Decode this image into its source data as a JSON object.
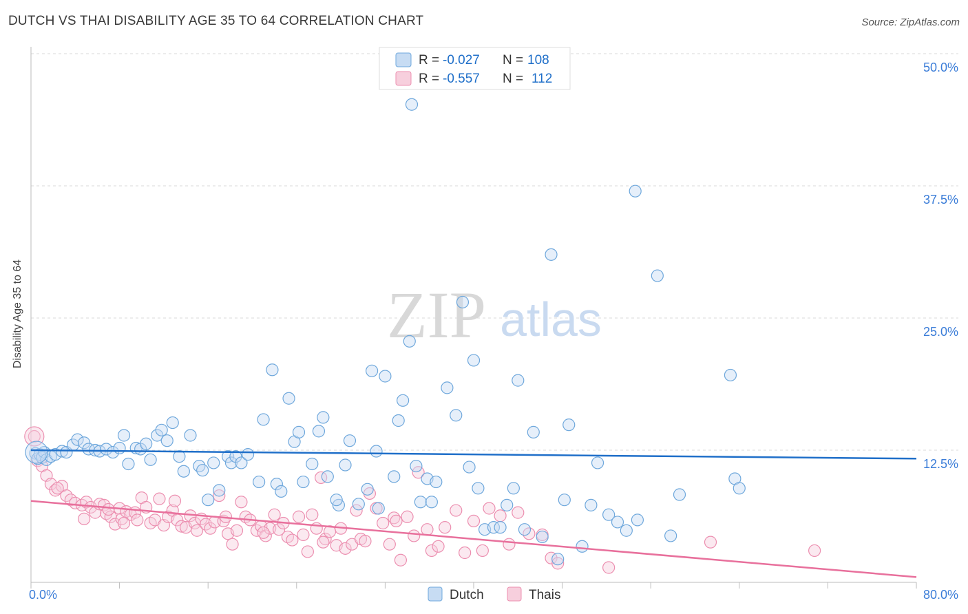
{
  "title": "DUTCH VS THAI DISABILITY AGE 35 TO 64 CORRELATION CHART",
  "source": "Source: ZipAtlas.com",
  "watermark": {
    "zip": "ZIP",
    "atlas": "atlas"
  },
  "colors": {
    "dutch": "#6fa8dc",
    "dutch_fill": "#c7dcf3",
    "dutch_line": "#1f6fc9",
    "thai": "#ec8fb0",
    "thai_fill": "#f7cfdd",
    "thai_line": "#e8709c",
    "tick_text": "#3b7dd8",
    "grid": "#d9d9d9"
  },
  "legend": {
    "rows": [
      {
        "r_label": "R =",
        "r_value": "-0.027",
        "n_label": "N =",
        "n_value": "108"
      },
      {
        "r_label": "R =",
        "r_value": "-0.557",
        "n_label": "N =",
        "n_value": "112"
      }
    ]
  },
  "chart_data": {
    "type": "scatter",
    "xlabel": "",
    "ylabel": "Disability Age 35 to 64",
    "xlim": [
      0,
      80
    ],
    "ylim": [
      0,
      50
    ],
    "x_tick_labels": [
      "0.0%",
      "80.0%"
    ],
    "y_ticks": [
      12.5,
      25.0,
      37.5,
      50.0
    ],
    "y_tick_labels": [
      "12.5%",
      "25.0%",
      "37.5%",
      "50.0%"
    ],
    "grid": "horizontal dashed",
    "legend_position": "top-center",
    "series": [
      {
        "name": "Dutch",
        "color": "#6fa8dc",
        "trend": {
          "x": [
            0,
            80
          ],
          "y": [
            12.5,
            11.7
          ]
        },
        "points": [
          [
            0.4,
            12.2
          ],
          [
            0.6,
            11.7
          ],
          [
            0.8,
            12.1
          ],
          [
            1.0,
            11.8
          ],
          [
            1.2,
            12.3
          ],
          [
            1.4,
            11.6
          ],
          [
            1.8,
            11.9
          ],
          [
            2.2,
            12.1
          ],
          [
            2.8,
            12.4
          ],
          [
            3.2,
            12.3
          ],
          [
            3.8,
            13.0
          ],
          [
            4.2,
            13.5
          ],
          [
            4.8,
            13.2
          ],
          [
            5.2,
            12.6
          ],
          [
            5.8,
            12.5
          ],
          [
            6.2,
            12.4
          ],
          [
            6.8,
            12.6
          ],
          [
            7.4,
            12.3
          ],
          [
            8.0,
            12.7
          ],
          [
            8.4,
            13.9
          ],
          [
            8.8,
            11.2
          ],
          [
            9.5,
            12.7
          ],
          [
            9.9,
            12.6
          ],
          [
            10.4,
            13.1
          ],
          [
            10.8,
            11.6
          ],
          [
            11.4,
            13.9
          ],
          [
            11.8,
            14.4
          ],
          [
            12.3,
            13.4
          ],
          [
            12.8,
            15.1
          ],
          [
            13.4,
            11.9
          ],
          [
            13.8,
            10.5
          ],
          [
            14.4,
            13.9
          ],
          [
            15.2,
            11.0
          ],
          [
            15.5,
            10.6
          ],
          [
            16.0,
            7.8
          ],
          [
            16.5,
            11.3
          ],
          [
            17.0,
            8.7
          ],
          [
            17.8,
            11.9
          ],
          [
            18.1,
            11.3
          ],
          [
            18.5,
            11.9
          ],
          [
            19.0,
            11.3
          ],
          [
            19.6,
            12.1
          ],
          [
            20.6,
            9.5
          ],
          [
            21.0,
            15.4
          ],
          [
            21.8,
            20.1
          ],
          [
            22.2,
            9.3
          ],
          [
            22.6,
            8.6
          ],
          [
            23.3,
            17.4
          ],
          [
            23.8,
            13.3
          ],
          [
            24.2,
            14.2
          ],
          [
            24.6,
            9.5
          ],
          [
            25.4,
            11.2
          ],
          [
            26.0,
            14.3
          ],
          [
            26.4,
            15.6
          ],
          [
            26.8,
            10.0
          ],
          [
            27.8,
            7.3
          ],
          [
            27.6,
            7.8
          ],
          [
            28.4,
            11.1
          ],
          [
            28.8,
            13.4
          ],
          [
            29.6,
            7.4
          ],
          [
            30.4,
            8.8
          ],
          [
            30.8,
            20.0
          ],
          [
            31.2,
            12.4
          ],
          [
            31.4,
            7.0
          ],
          [
            32.0,
            19.5
          ],
          [
            32.8,
            10.0
          ],
          [
            33.2,
            15.3
          ],
          [
            33.6,
            17.2
          ],
          [
            34.2,
            22.8
          ],
          [
            34.4,
            45.2
          ],
          [
            34.8,
            11.0
          ],
          [
            35.2,
            7.6
          ],
          [
            35.8,
            9.8
          ],
          [
            36.2,
            7.6
          ],
          [
            36.6,
            9.5
          ],
          [
            37.6,
            18.4
          ],
          [
            38.4,
            15.8
          ],
          [
            39.0,
            26.5
          ],
          [
            39.6,
            10.9
          ],
          [
            40.0,
            21.0
          ],
          [
            40.4,
            8.9
          ],
          [
            41.0,
            5.0
          ],
          [
            41.8,
            5.2
          ],
          [
            42.4,
            5.2
          ],
          [
            43.0,
            7.3
          ],
          [
            43.6,
            8.9
          ],
          [
            44.0,
            19.1
          ],
          [
            44.6,
            5.0
          ],
          [
            45.4,
            14.2
          ],
          [
            46.2,
            4.3
          ],
          [
            47.0,
            31.0
          ],
          [
            47.6,
            2.2
          ],
          [
            48.2,
            7.8
          ],
          [
            48.6,
            14.9
          ],
          [
            49.8,
            3.4
          ],
          [
            50.6,
            7.3
          ],
          [
            51.2,
            11.3
          ],
          [
            52.2,
            6.4
          ],
          [
            53.0,
            5.7
          ],
          [
            53.8,
            4.9
          ],
          [
            54.6,
            37.0
          ],
          [
            54.8,
            5.9
          ],
          [
            56.6,
            29.0
          ],
          [
            57.8,
            4.4
          ],
          [
            58.6,
            8.3
          ],
          [
            63.2,
            19.6
          ],
          [
            63.6,
            9.8
          ],
          [
            64.0,
            8.9
          ]
        ]
      },
      {
        "name": "Thais",
        "color": "#ec8fb0",
        "trend": {
          "x": [
            0,
            80
          ],
          "y": [
            7.7,
            0.5
          ]
        },
        "points": [
          [
            0.3,
            13.8
          ],
          [
            0.6,
            11.5
          ],
          [
            1.0,
            11.0
          ],
          [
            1.4,
            10.1
          ],
          [
            1.8,
            9.3
          ],
          [
            2.2,
            8.7
          ],
          [
            2.8,
            9.1
          ],
          [
            3.2,
            8.2
          ],
          [
            3.6,
            7.8
          ],
          [
            4.0,
            7.5
          ],
          [
            4.6,
            7.3
          ],
          [
            5.0,
            7.6
          ],
          [
            5.4,
            7.1
          ],
          [
            5.8,
            6.6
          ],
          [
            6.2,
            7.4
          ],
          [
            6.6,
            7.3
          ],
          [
            6.8,
            6.5
          ],
          [
            7.2,
            6.2
          ],
          [
            7.6,
            5.5
          ],
          [
            8.0,
            7.0
          ],
          [
            8.2,
            6.0
          ],
          [
            8.6,
            6.7
          ],
          [
            9.0,
            6.4
          ],
          [
            9.4,
            6.6
          ],
          [
            9.6,
            5.9
          ],
          [
            10.0,
            8.0
          ],
          [
            10.4,
            7.1
          ],
          [
            10.8,
            5.6
          ],
          [
            11.2,
            5.9
          ],
          [
            11.6,
            7.9
          ],
          [
            12.0,
            5.4
          ],
          [
            12.4,
            6.2
          ],
          [
            12.8,
            6.8
          ],
          [
            13.2,
            5.9
          ],
          [
            13.6,
            5.3
          ],
          [
            14.0,
            5.2
          ],
          [
            14.4,
            6.3
          ],
          [
            14.8,
            5.6
          ],
          [
            15.0,
            4.9
          ],
          [
            15.4,
            6.0
          ],
          [
            15.8,
            5.5
          ],
          [
            16.2,
            5.1
          ],
          [
            16.6,
            5.7
          ],
          [
            17.0,
            8.2
          ],
          [
            17.4,
            5.8
          ],
          [
            17.8,
            4.6
          ],
          [
            18.2,
            3.6
          ],
          [
            18.6,
            4.9
          ],
          [
            19.0,
            7.6
          ],
          [
            19.4,
            6.2
          ],
          [
            19.8,
            5.9
          ],
          [
            20.4,
            4.9
          ],
          [
            20.8,
            5.3
          ],
          [
            21.2,
            4.4
          ],
          [
            21.6,
            5.1
          ],
          [
            22.0,
            6.4
          ],
          [
            22.4,
            5.0
          ],
          [
            22.8,
            5.6
          ],
          [
            23.2,
            4.3
          ],
          [
            23.6,
            4.0
          ],
          [
            24.2,
            6.2
          ],
          [
            24.6,
            4.5
          ],
          [
            25.0,
            2.9
          ],
          [
            25.4,
            6.4
          ],
          [
            25.8,
            5.1
          ],
          [
            26.2,
            9.9
          ],
          [
            26.6,
            4.1
          ],
          [
            27.0,
            4.8
          ],
          [
            27.6,
            3.5
          ],
          [
            28.0,
            5.1
          ],
          [
            28.4,
            3.2
          ],
          [
            29.0,
            3.6
          ],
          [
            29.4,
            6.8
          ],
          [
            29.8,
            4.1
          ],
          [
            30.2,
            3.9
          ],
          [
            30.6,
            8.4
          ],
          [
            31.2,
            7.0
          ],
          [
            31.8,
            5.6
          ],
          [
            32.4,
            3.6
          ],
          [
            32.8,
            6.1
          ],
          [
            33.4,
            2.1
          ],
          [
            34.0,
            6.2
          ],
          [
            34.6,
            4.4
          ],
          [
            35.0,
            10.4
          ],
          [
            35.8,
            5.0
          ],
          [
            36.2,
            3.0
          ],
          [
            36.8,
            3.4
          ],
          [
            37.4,
            5.2
          ],
          [
            38.4,
            6.8
          ],
          [
            39.2,
            2.8
          ],
          [
            40.0,
            5.8
          ],
          [
            41.4,
            7.0
          ],
          [
            42.4,
            6.3
          ],
          [
            43.2,
            3.6
          ],
          [
            44.0,
            6.6
          ],
          [
            45.0,
            4.6
          ],
          [
            46.2,
            4.5
          ],
          [
            47.0,
            2.3
          ],
          [
            47.6,
            1.8
          ],
          [
            52.2,
            1.4
          ],
          [
            61.4,
            3.8
          ],
          [
            70.8,
            3.0
          ],
          [
            2.4,
            8.9
          ],
          [
            4.8,
            6.0
          ],
          [
            7.0,
            6.9
          ],
          [
            8.4,
            5.6
          ],
          [
            13.0,
            7.7
          ],
          [
            17.6,
            6.2
          ],
          [
            21.0,
            4.7
          ],
          [
            26.4,
            3.8
          ],
          [
            33.0,
            5.8
          ],
          [
            40.8,
            3.0
          ]
        ]
      }
    ]
  },
  "bottom_legend": [
    {
      "label": "Dutch"
    },
    {
      "label": "Thais"
    }
  ]
}
